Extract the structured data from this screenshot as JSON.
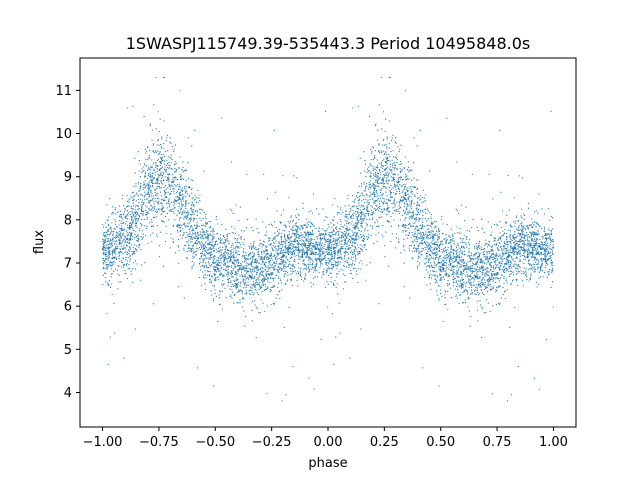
{
  "chart_data": {
    "type": "scatter",
    "title": "1SWASPJ115749.39-535443.3 Period 10495848.0s",
    "xlabel": "phase",
    "ylabel": "flux",
    "xlim": [
      -1.1,
      1.1
    ],
    "ylim": [
      3.2,
      11.75
    ],
    "xticks": [
      -1.0,
      -0.75,
      -0.5,
      -0.25,
      0.0,
      0.25,
      0.5,
      0.75,
      1.0
    ],
    "xtick_labels": [
      "−1.00",
      "−0.75",
      "−0.50",
      "−0.25",
      "0.00",
      "0.25",
      "0.50",
      "0.75",
      "1.00"
    ],
    "yticks": [
      4,
      5,
      6,
      7,
      8,
      9,
      10,
      11
    ],
    "ytick_labels": [
      "4",
      "5",
      "6",
      "7",
      "8",
      "9",
      "10",
      "11"
    ],
    "point_color": "#1f77b4",
    "grid": false,
    "legend": "none",
    "series": [
      {
        "phase_range": [
          -1.0,
          1.0
        ],
        "period_in_phase": 1.0,
        "profile": {
          "phase": [
            0.0,
            0.05,
            0.1,
            0.15,
            0.2,
            0.25,
            0.3,
            0.35,
            0.4,
            0.45,
            0.5,
            0.55,
            0.6,
            0.65,
            0.7,
            0.75,
            0.8,
            0.85,
            0.9,
            0.95,
            1.0
          ],
          "mean_flux": [
            7.3,
            7.4,
            7.5,
            8.0,
            8.7,
            8.9,
            8.8,
            8.3,
            7.8,
            7.4,
            7.1,
            7.0,
            6.9,
            6.85,
            6.9,
            7.0,
            7.2,
            7.4,
            7.35,
            7.3,
            7.3
          ],
          "scatter": [
            0.35,
            0.4,
            0.45,
            0.5,
            0.55,
            0.6,
            0.6,
            0.5,
            0.45,
            0.4,
            0.4,
            0.4,
            0.4,
            0.4,
            0.4,
            0.4,
            0.4,
            0.35,
            0.35,
            0.35,
            0.35
          ]
        },
        "y_range_observed": [
          3.6,
          11.3
        ]
      }
    ]
  }
}
